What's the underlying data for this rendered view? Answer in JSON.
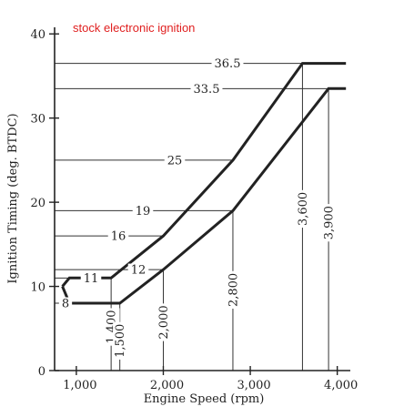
{
  "chart_data": {
    "type": "line",
    "annotation": "stock electronic ignition",
    "annotation_color": "#e02020",
    "line_color": "#222222",
    "xlabel": "Engine Speed (rpm)",
    "ylabel": "Ignition Timing (deg. BTDC)",
    "xlim": [
      750,
      4150
    ],
    "ylim": [
      0,
      41
    ],
    "xticks": [
      {
        "value": 1000,
        "label": "1,000"
      },
      {
        "value": 2000,
        "label": "2,000"
      },
      {
        "value": 3000,
        "label": "3,000"
      },
      {
        "value": 4000,
        "label": "4,000"
      }
    ],
    "yticks": [
      {
        "value": 0,
        "label": "0"
      },
      {
        "value": 10,
        "label": "10"
      },
      {
        "value": 20,
        "label": "20"
      },
      {
        "value": 30,
        "label": "30"
      },
      {
        "value": 40,
        "label": "40"
      }
    ],
    "series": [
      {
        "x": [
          840,
          920,
          1400,
          2000,
          2800,
          3600,
          4100
        ],
        "y": [
          10,
          11,
          11,
          16,
          25,
          36.5,
          36.5
        ]
      },
      {
        "x": [
          840,
          920,
          1500,
          2000,
          2800,
          3900,
          4100
        ],
        "y": [
          10,
          8,
          8,
          12,
          19,
          33.5,
          33.5
        ]
      }
    ],
    "h_refs": [
      {
        "value": 36.5,
        "label": "36.5",
        "x_end": 3600
      },
      {
        "value": 33.5,
        "label": "33.5",
        "x_end": 3900
      },
      {
        "value": 25,
        "label": "25",
        "x_end": 2800
      },
      {
        "value": 19,
        "label": "19",
        "x_end": 2800
      },
      {
        "value": 16,
        "label": "16",
        "x_end": 2000
      },
      {
        "value": 12,
        "label": "12",
        "x_end": 2000
      },
      {
        "value": 11,
        "label": "11",
        "x_end": 920
      },
      {
        "value": 8,
        "label": "8",
        "x_end": 920
      }
    ],
    "v_refs": [
      {
        "value": 1400,
        "label": "1,400",
        "y_top": 11
      },
      {
        "value": 1500,
        "label": "1,500",
        "y_top": 8
      },
      {
        "value": 2000,
        "label": "2,000",
        "y_top": 12
      },
      {
        "value": 2800,
        "label": "2,800",
        "y_top": 19
      },
      {
        "value": 3600,
        "label": "3,600",
        "y_top": 36.5
      },
      {
        "value": 3900,
        "label": "3,900",
        "y_top": 33.5
      }
    ]
  }
}
